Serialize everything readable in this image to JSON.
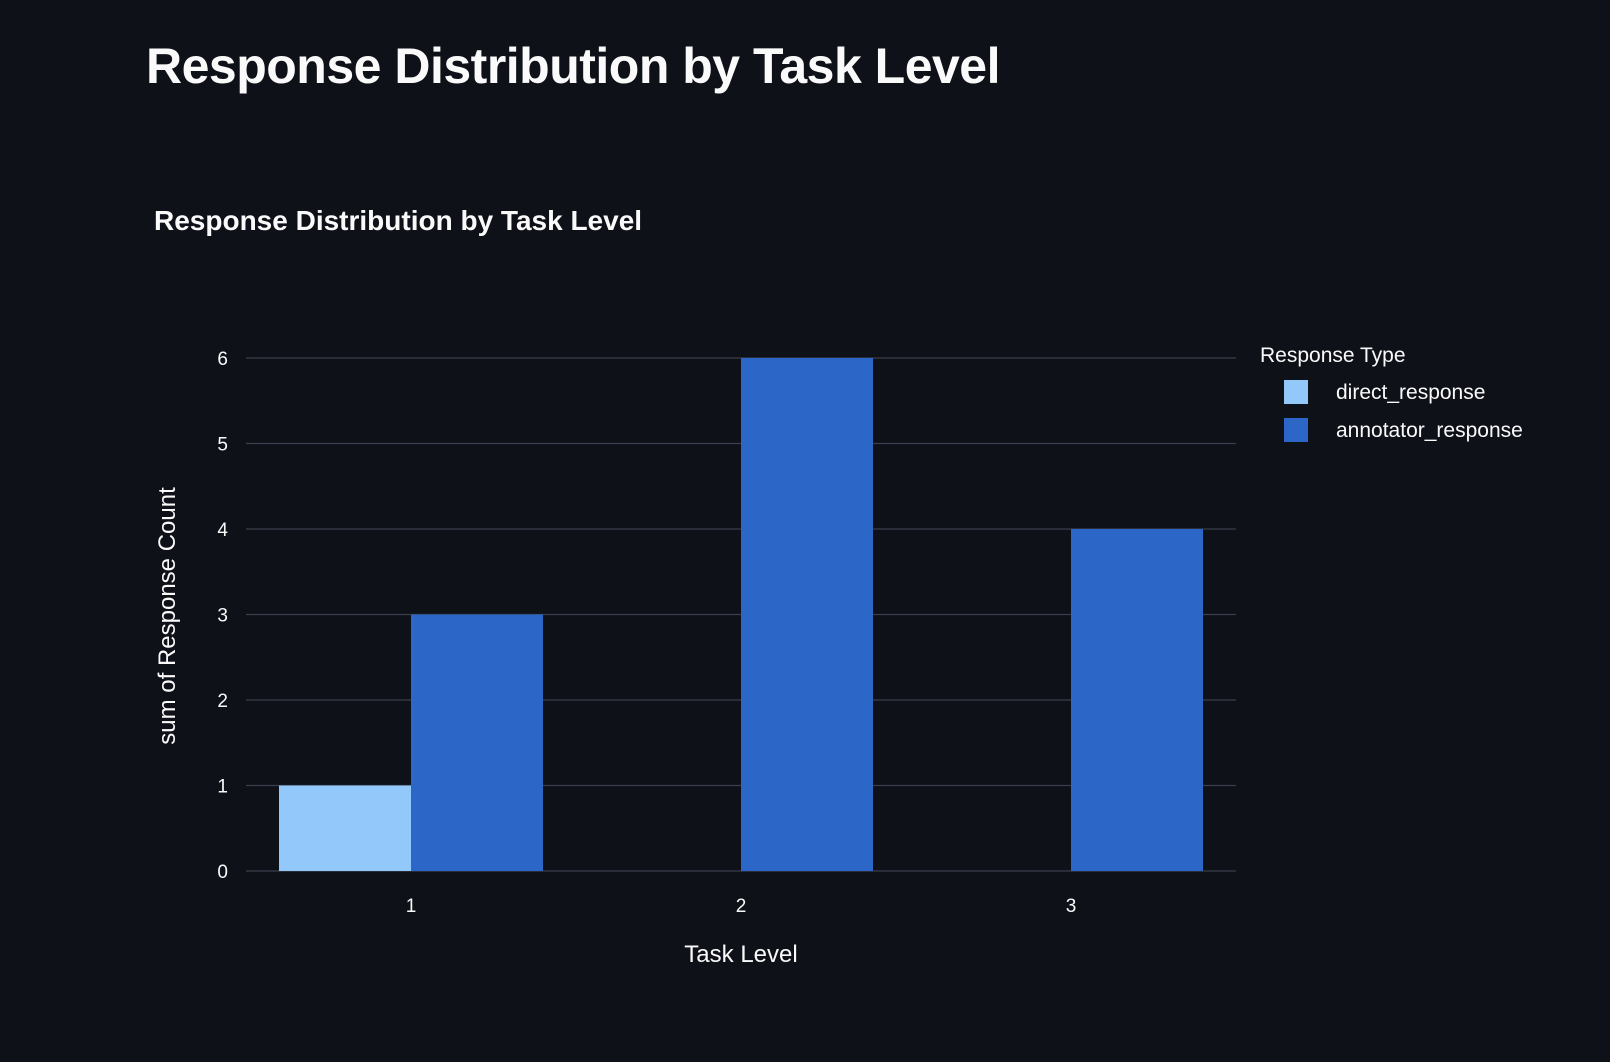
{
  "page": {
    "title": "Response Distribution by Task Level"
  },
  "chart_data": {
    "type": "bar",
    "title": "Response Distribution by Task Level",
    "xlabel": "Task Level",
    "ylabel": "sum of Response Count",
    "categories": [
      "1",
      "2",
      "3"
    ],
    "series": [
      {
        "name": "direct_response",
        "values": [
          1,
          0,
          0
        ],
        "color": "#93c8fb"
      },
      {
        "name": "annotator_response",
        "values": [
          3,
          6,
          4
        ],
        "color": "#2c67c7"
      }
    ],
    "ylim": [
      0,
      6
    ],
    "yticks": [
      0,
      1,
      2,
      3,
      4,
      5,
      6
    ],
    "grid": true,
    "legend": {
      "title": "Response Type",
      "position": "right"
    }
  },
  "colors": {
    "background": "#0e1118",
    "text": "#fafafa",
    "grid": "#3a3f4b"
  }
}
